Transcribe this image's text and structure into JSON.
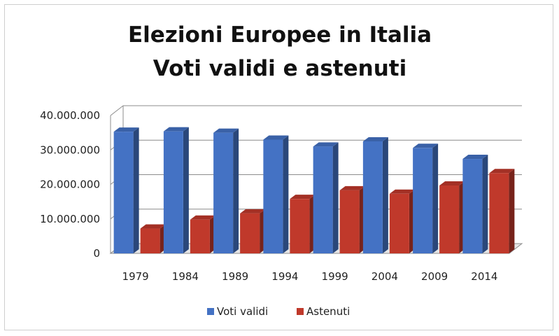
{
  "chart_data": {
    "type": "bar",
    "title": "Elezioni Europee in Italia",
    "subtitle": "Voti validi e astenuti",
    "categories": [
      "1979",
      "1984",
      "1989",
      "1994",
      "1999",
      "2004",
      "2009",
      "2014"
    ],
    "series": [
      {
        "name": "Voti validi",
        "color": "#4472C4",
        "values": [
          35300000,
          35400000,
          35000000,
          33000000,
          31000000,
          32500000,
          30600000,
          27400000
        ]
      },
      {
        "name": "Astenuti",
        "color": "#C0392B",
        "values": [
          7200000,
          9800000,
          11600000,
          15800000,
          18300000,
          17300000,
          19700000,
          23300000
        ]
      }
    ],
    "yticks": [
      "0",
      "10.000.000",
      "20.000.000",
      "30.000.000",
      "40.000.000"
    ],
    "ylim": [
      0,
      40000000
    ],
    "grid": true,
    "legend_position": "bottom"
  }
}
